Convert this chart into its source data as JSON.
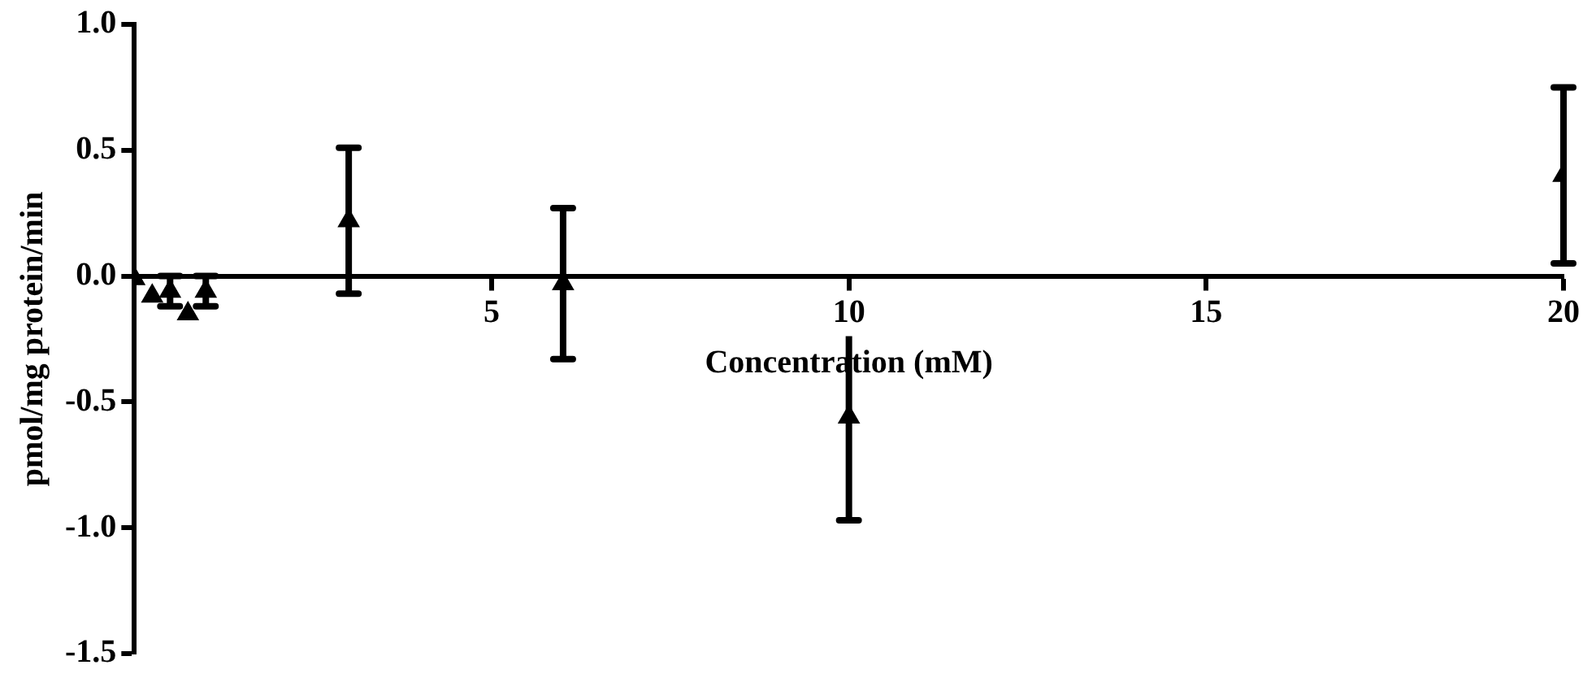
{
  "chart_data": {
    "type": "scatter",
    "xlabel": "Concentration (mM)",
    "ylabel": "pmol/mg protein/min",
    "x": [
      0,
      0.25,
      0.5,
      0.75,
      1,
      3,
      6,
      10,
      20
    ],
    "series": [
      {
        "color": "#000000",
        "values": [
          -0.01,
          -0.08,
          -0.06,
          -0.15,
          -0.06,
          0.22,
          -0.03,
          -0.56,
          0.4
        ],
        "errors": [
          null,
          null,
          0.06,
          null,
          0.06,
          0.29,
          0.3,
          0.41,
          0.35
        ]
      }
    ],
    "xlim": [
      0,
      20
    ],
    "xticks": [
      5,
      10,
      15,
      20
    ],
    "ylim": [
      -1.5,
      1.0
    ],
    "yticks": [
      {
        "value": -1.5,
        "label": "-1.5"
      },
      {
        "value": -1,
        "label": "-1.0"
      },
      {
        "value": -0.5,
        "label": "-0.5"
      },
      {
        "value": 0,
        "label": "0.0"
      },
      {
        "value": 0.5,
        "label": "0.5"
      },
      {
        "value": 1,
        "label": "1.0"
      }
    ],
    "grid": false,
    "legend": false,
    "marker": "triangle"
  }
}
